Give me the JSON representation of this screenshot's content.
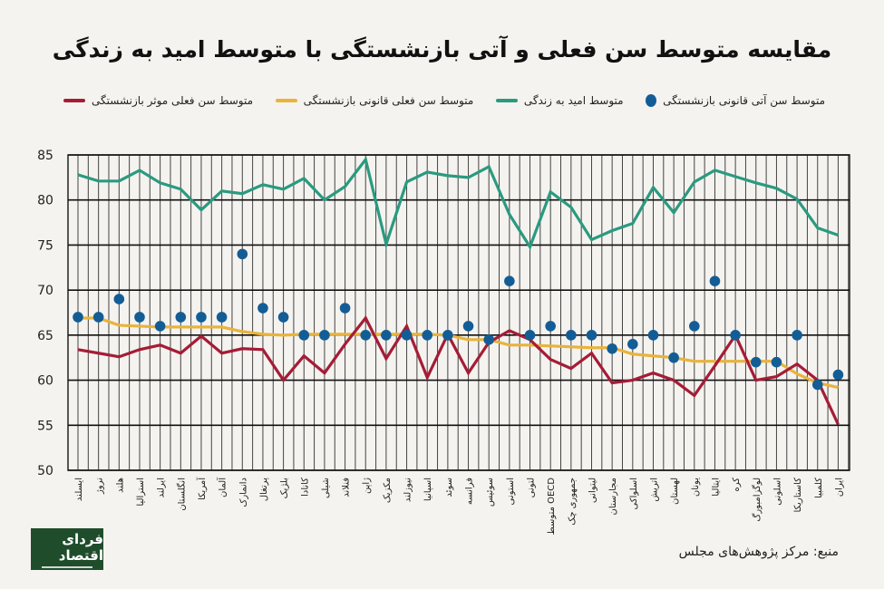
{
  "title": "مقایسه متوسط سن فعلی و آتی بازنشستگی با متوسط امید به زندگی",
  "source": "منبع: مرکز پژوهش‌های مجلس",
  "logo_text": "فردای اقتصاد",
  "colors": {
    "life": "#2a9a80",
    "legal_current": "#e9b33c",
    "effective": "#a51c36",
    "future": "#135d96",
    "grid": "#333333",
    "background": "#f5f3ef"
  },
  "chart_data": {
    "type": "line",
    "title": "مقایسه متوسط سن فعلی و آتی بازنشستگی با متوسط امید به زندگی",
    "xlabel": "",
    "ylabel": "",
    "ylim": [
      50,
      85
    ],
    "yticks": [
      85,
      80,
      75,
      70,
      65,
      60,
      55,
      50
    ],
    "grid": true,
    "legend_placement": "top",
    "categories": [
      "ایسلند",
      "نروژ",
      "هلند",
      "استرالیا",
      "ایرلند",
      "انگلستان",
      "آمریکا",
      "آلمان",
      "دانمارک",
      "پرتغال",
      "بلژیک",
      "کانادا",
      "شیلی",
      "فنلاند",
      "ژاپن",
      "مکزیک",
      "نیوزلند",
      "اسپانیا",
      "سوئد",
      "فرانسه",
      "سوئیس",
      "استونی",
      "لتونی",
      "متوسط OECD",
      "جمهوری چک",
      "لیتوانی",
      "مجارستان",
      "اسلواکی",
      "اتریش",
      "لهستان",
      "یونان",
      "ایتالیا",
      "کره",
      "لوگزامبورگ",
      "اسلونی",
      "کاستاریکا",
      "کلمبیا",
      "ایران"
    ],
    "series": [
      {
        "name": "متوسط سن آتی قانونی بازنشستگی",
        "kind": "scatter",
        "color": "#135d96",
        "values": [
          67,
          67,
          69,
          67,
          66,
          67,
          67,
          67,
          74,
          68,
          67,
          65,
          65,
          68,
          65,
          65,
          65,
          65,
          65,
          66,
          64.5,
          71,
          65,
          66,
          65,
          65,
          63.5,
          64,
          65,
          62.5,
          66,
          71,
          65,
          62,
          62,
          65,
          59.5,
          60.6
        ]
      },
      {
        "name": "متوسط امید به زندگی",
        "kind": "line",
        "color": "#2a9a80",
        "values": [
          82.8,
          82.1,
          82.1,
          83.3,
          81.9,
          81.2,
          78.9,
          81.0,
          80.7,
          81.7,
          81.2,
          82.4,
          80.0,
          81.5,
          84.5,
          75.1,
          82.0,
          83.1,
          82.7,
          82.5,
          83.7,
          78.4,
          74.8,
          80.9,
          79.2,
          75.6,
          76.6,
          77.4,
          81.4,
          78.6,
          82.0,
          83.3,
          82.6,
          81.9,
          81.3,
          80.1,
          76.9,
          76.1
        ]
      },
      {
        "name": "متوسط سن فعلی قانونی بازنشستگی",
        "kind": "line",
        "color": "#e9b33c",
        "values": [
          66.9,
          66.9,
          66.1,
          66.0,
          65.9,
          65.9,
          65.9,
          65.9,
          65.4,
          65.1,
          65.0,
          65.1,
          65.1,
          65.1,
          65.1,
          65.1,
          65.1,
          65.1,
          65.0,
          64.5,
          64.5,
          63.9,
          63.9,
          63.8,
          63.7,
          63.6,
          63.6,
          62.9,
          62.7,
          62.5,
          62.1,
          62.1,
          62.1,
          62.1,
          62.1,
          60.7,
          59.7,
          59.2
        ]
      },
      {
        "name": "متوسط سن فعلی موثر بازنشستگی",
        "kind": "line",
        "color": "#a51c36",
        "values": [
          63.4,
          63.0,
          62.6,
          63.4,
          63.9,
          63.0,
          64.9,
          63.0,
          63.5,
          63.4,
          60.0,
          62.7,
          60.8,
          64.0,
          66.9,
          62.4,
          66.0,
          60.3,
          65.1,
          60.8,
          64.2,
          65.5,
          64.5,
          62.3,
          61.3,
          63.0,
          59.7,
          60.0,
          60.8,
          60.0,
          58.3,
          61.6,
          65.0,
          60.0,
          60.4,
          61.8,
          60.0,
          55.1
        ]
      }
    ]
  }
}
